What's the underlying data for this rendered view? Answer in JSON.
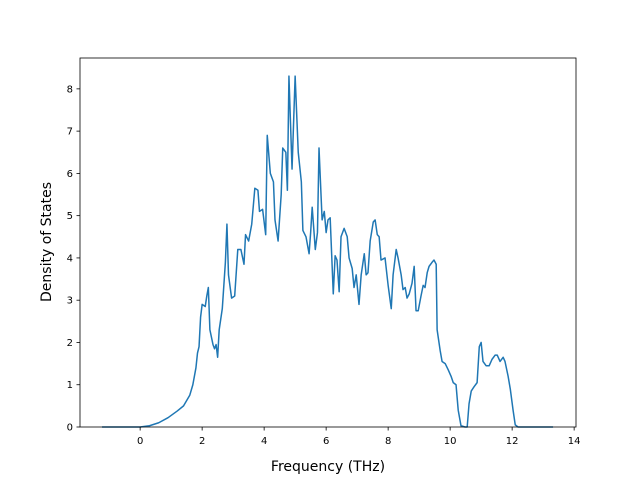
{
  "chart_data": {
    "type": "line",
    "xlabel": "Frequency (THz)",
    "ylabel": "Density of States",
    "xlim": [
      -1.94,
      14.06
    ],
    "ylim": [
      0,
      8.73
    ],
    "xticks": [
      0,
      2,
      4,
      6,
      8,
      10,
      12,
      14
    ],
    "yticks": [
      0,
      1,
      2,
      3,
      4,
      5,
      6,
      7,
      8
    ],
    "series": [
      {
        "color": "#1f77b4",
        "x": [
          -1.23,
          0,
          0.3,
          0.6,
          0.9,
          1.2,
          1.4,
          1.6,
          1.7,
          1.8,
          1.85,
          1.9,
          1.95,
          2.0,
          2.1,
          2.15,
          2.2,
          2.25,
          2.35,
          2.4,
          2.45,
          2.5,
          2.55,
          2.65,
          2.75,
          2.8,
          2.85,
          2.95,
          3.05,
          3.15,
          3.25,
          3.35,
          3.4,
          3.5,
          3.6,
          3.7,
          3.8,
          3.85,
          3.95,
          4.05,
          4.1,
          4.2,
          4.3,
          4.35,
          4.45,
          4.55,
          4.6,
          4.7,
          4.75,
          4.8,
          4.9,
          5.0,
          5.1,
          5.2,
          5.25,
          5.35,
          5.45,
          5.5,
          5.55,
          5.65,
          5.72,
          5.77,
          5.87,
          5.94,
          6.0,
          6.06,
          6.13,
          6.23,
          6.29,
          6.35,
          6.42,
          6.48,
          6.58,
          6.68,
          6.74,
          6.84,
          6.9,
          6.97,
          7.06,
          7.13,
          7.23,
          7.29,
          7.35,
          7.42,
          7.52,
          7.58,
          7.65,
          7.71,
          7.77,
          7.9,
          8.0,
          8.1,
          8.16,
          8.26,
          8.32,
          8.42,
          8.48,
          8.55,
          8.61,
          8.68,
          8.77,
          8.84,
          8.9,
          8.97,
          9.06,
          9.13,
          9.19,
          9.26,
          9.32,
          9.42,
          9.48,
          9.55,
          9.58,
          9.68,
          9.74,
          9.84,
          9.94,
          10.03,
          10.1,
          10.19,
          10.26,
          10.35,
          10.48,
          10.55,
          10.61,
          10.68,
          10.77,
          10.87,
          10.94,
          11.0,
          11.06,
          11.16,
          11.26,
          11.35,
          11.45,
          11.52,
          11.61,
          11.71,
          11.77,
          11.87,
          11.94,
          12.03,
          12.1,
          12.19,
          13.32
        ],
        "values": [
          0,
          0,
          0.03,
          0.1,
          0.22,
          0.38,
          0.5,
          0.75,
          1.0,
          1.4,
          1.75,
          1.9,
          2.6,
          2.9,
          2.85,
          3.1,
          3.3,
          2.3,
          1.95,
          1.85,
          1.95,
          1.65,
          2.3,
          2.8,
          3.9,
          4.8,
          3.6,
          3.05,
          3.1,
          4.2,
          4.2,
          3.85,
          4.55,
          4.4,
          4.8,
          5.65,
          5.6,
          5.1,
          5.15,
          4.55,
          6.9,
          6.0,
          5.8,
          4.9,
          4.4,
          5.5,
          6.6,
          6.5,
          5.6,
          8.3,
          6.1,
          8.3,
          6.5,
          5.8,
          4.65,
          4.5,
          4.1,
          4.6,
          5.2,
          4.2,
          4.6,
          6.6,
          4.9,
          5.1,
          4.6,
          4.9,
          4.95,
          3.15,
          4.05,
          3.95,
          3.2,
          4.5,
          4.7,
          4.5,
          4.0,
          3.75,
          3.3,
          3.6,
          2.9,
          3.6,
          4.1,
          3.6,
          3.65,
          4.4,
          4.85,
          4.9,
          4.55,
          4.5,
          3.95,
          4.0,
          3.35,
          2.8,
          3.6,
          4.2,
          4.0,
          3.6,
          3.25,
          3.3,
          3.05,
          3.15,
          3.4,
          3.8,
          2.75,
          2.75,
          3.1,
          3.35,
          3.3,
          3.65,
          3.8,
          3.9,
          3.95,
          3.85,
          2.3,
          1.8,
          1.55,
          1.5,
          1.35,
          1.2,
          1.05,
          1.0,
          0.4,
          0.03,
          0,
          0,
          0.55,
          0.85,
          0.95,
          1.05,
          1.9,
          2.0,
          1.55,
          1.45,
          1.45,
          1.6,
          1.7,
          1.7,
          1.55,
          1.65,
          1.55,
          1.2,
          0.9,
          0.4,
          0.05,
          0,
          0
        ]
      }
    ]
  }
}
